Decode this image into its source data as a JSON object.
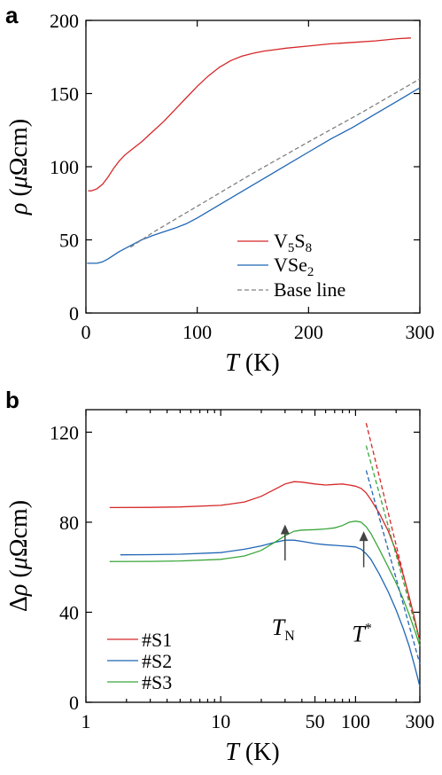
{
  "chart_data": [
    {
      "panel": "a",
      "type": "line",
      "xlim": [
        0,
        300
      ],
      "ylim": [
        0,
        200
      ],
      "xticks": [
        0,
        100,
        200,
        300
      ],
      "yticks": [
        0,
        50,
        100,
        150,
        200
      ],
      "xlabel": {
        "italic": "T",
        "rest": "(K)"
      },
      "ylabel": {
        "italic": "ρ",
        "rest": "(μΩcm)"
      },
      "grid": false,
      "legend_position": "bottom-right",
      "series": [
        {
          "name": "V5S8",
          "label": {
            "base1": "V",
            "sub1": "5",
            "base2": "S",
            "sub2": "8"
          },
          "color": "#d62728",
          "dash": "",
          "x": [
            2,
            5,
            10,
            15,
            20,
            25,
            30,
            35,
            40,
            50,
            60,
            70,
            80,
            90,
            100,
            110,
            120,
            130,
            140,
            150,
            160,
            170,
            180,
            200,
            220,
            240,
            260,
            280,
            292
          ],
          "y": [
            83.5,
            83.5,
            85,
            88,
            93,
            99,
            104,
            108,
            111,
            117,
            124,
            131,
            139,
            147,
            155,
            162,
            168,
            172.5,
            175.5,
            177.5,
            179,
            180,
            181,
            182.5,
            184,
            185,
            186,
            187.5,
            188
          ]
        },
        {
          "name": "VSe2",
          "label": {
            "base1": "VSe",
            "sub1": "2"
          },
          "color": "#1f66b5",
          "dash": "",
          "x": [
            1,
            5,
            10,
            15,
            20,
            30,
            40,
            50,
            60,
            70,
            80,
            90,
            100,
            120,
            140,
            160,
            180,
            200,
            220,
            240,
            260,
            280,
            300
          ],
          "y": [
            34,
            34,
            34,
            35,
            37,
            42,
            46,
            50,
            53,
            55.5,
            58,
            61,
            65,
            74,
            83,
            92,
            101,
            110,
            119,
            127,
            136,
            145,
            154
          ]
        },
        {
          "name": "Base line",
          "label": {
            "base1": "Base line"
          },
          "color": "#808080",
          "dash": "5 3",
          "x": [
            40,
            60,
            80,
            100,
            150,
            200,
            250,
            300
          ],
          "y": [
            45,
            55,
            64,
            73,
            95.5,
            117,
            138,
            160
          ]
        }
      ]
    },
    {
      "panel": "b",
      "type": "line",
      "xscale": "log",
      "xlim": [
        1,
        300
      ],
      "ylim": [
        0,
        130
      ],
      "xticks": [
        1,
        10,
        50,
        100,
        300
      ],
      "xtick_labels": [
        "1",
        "10",
        "50",
        "100",
        "300"
      ],
      "yticks": [
        0,
        40,
        80,
        120
      ],
      "xlabel": {
        "italic": "T",
        "rest": "(K)"
      },
      "ylabel": {
        "prefix": "Δ",
        "italic": "ρ",
        "rest": "(μΩcm)"
      },
      "grid": false,
      "legend_position": "bottom-left",
      "annotations": [
        {
          "text": "T",
          "sub": "N",
          "x": 30,
          "arrow_from": 63,
          "arrow_to": 79,
          "text_y": 30
        },
        {
          "text": "T",
          "sup": "*",
          "x": 115,
          "arrow_from": 60,
          "arrow_to": 76,
          "text_y": 27
        }
      ],
      "series": [
        {
          "name": "#S1",
          "color": "#d62728",
          "x": [
            1.5,
            3,
            5,
            10,
            15,
            20,
            25,
            30,
            35,
            40,
            50,
            60,
            70,
            80,
            90,
            100,
            110,
            120,
            130,
            150,
            175,
            200,
            225,
            250,
            275,
            300
          ],
          "y": [
            86.5,
            86.6,
            86.8,
            87.5,
            89,
            91.5,
            94.5,
            97,
            98,
            97.8,
            97,
            96.5,
            96.8,
            97,
            96.5,
            96,
            95,
            93,
            90,
            84,
            76,
            67,
            57,
            47,
            37,
            27
          ]
        },
        {
          "name": "#S2",
          "color": "#1f66b5",
          "x": [
            1.8,
            3,
            5,
            10,
            15,
            20,
            25,
            30,
            35,
            40,
            50,
            60,
            80,
            100,
            110,
            120,
            130,
            150,
            175,
            200,
            225,
            250,
            275,
            300
          ],
          "y": [
            65.5,
            65.6,
            65.8,
            66.5,
            68,
            69.5,
            71,
            72,
            72,
            71.5,
            70.5,
            70,
            69.5,
            69,
            68,
            66,
            63.5,
            57,
            49,
            41,
            33,
            25,
            16,
            7
          ]
        },
        {
          "name": "#S3",
          "color": "#3aa63a",
          "x": [
            1.5,
            3,
            5,
            10,
            15,
            20,
            25,
            30,
            35,
            40,
            50,
            60,
            70,
            80,
            90,
            100,
            110,
            120,
            130,
            150,
            175,
            200,
            225,
            250,
            275,
            300
          ],
          "y": [
            62.5,
            62.6,
            62.8,
            63.5,
            65,
            67.5,
            71,
            74,
            76,
            76.5,
            76.7,
            77,
            77.5,
            78.5,
            80,
            80.5,
            80,
            78,
            75,
            68,
            60,
            53,
            46,
            39,
            32,
            25
          ]
        }
      ],
      "fits": [
        {
          "color": "#d62728",
          "x": [
            120,
            300
          ],
          "y": [
            124,
            27
          ]
        },
        {
          "color": "#3aa63a",
          "x": [
            120,
            300
          ],
          "y": [
            114,
            27
          ]
        },
        {
          "color": "#1f66b5",
          "x": [
            120,
            300
          ],
          "y": [
            103,
            17
          ]
        }
      ]
    }
  ],
  "figure": {
    "panel_a_letter": "a",
    "panel_b_letter": "b"
  }
}
